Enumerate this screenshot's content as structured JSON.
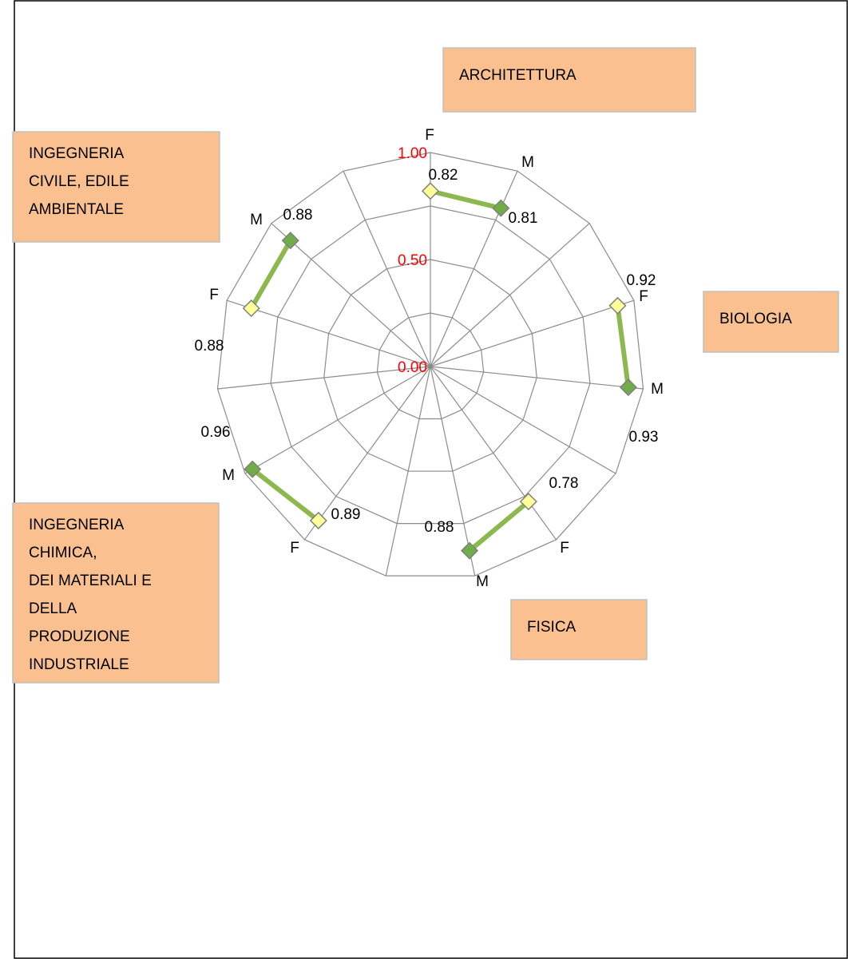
{
  "chart_data": {
    "type": "radar",
    "categories": [
      "F",
      "M",
      null,
      "F",
      "M",
      null,
      "F",
      "M",
      null,
      "F",
      "M",
      null,
      "F",
      "M",
      null
    ],
    "series": [
      {
        "color": "#8db850",
        "values": [
          0.82,
          0.81,
          null,
          0.92,
          0.93,
          null,
          0.78,
          0.88,
          null,
          0.89,
          0.96,
          null,
          0.88,
          0.88,
          null
        ]
      }
    ],
    "marker_colors": {
      "F": "#ffff99",
      "M": "#70ad47"
    },
    "ylim": [
      0,
      1
    ],
    "yticks": [
      {
        "value": 0,
        "label": "0.00"
      },
      {
        "value": 0.25,
        "label": null
      },
      {
        "value": 0.5,
        "label": "0.50"
      },
      {
        "value": 0.75,
        "label": null
      },
      {
        "value": 1,
        "label": "1.00"
      }
    ],
    "tick_color": "#ff0000",
    "grid": true,
    "annotations": [
      {
        "lines": [
          "ARCHITETTURA"
        ]
      },
      {
        "lines": [
          "INGEGNERIA",
          "CIVILE, EDILE",
          "AMBIENTALE"
        ]
      },
      {
        "lines": [
          "BIOLOGIA"
        ]
      },
      {
        "lines": [
          "FISICA"
        ]
      },
      {
        "lines": [
          "INGEGNERIA",
          "CHIMICA,",
          "DEI MATERIALI E",
          "DELLA",
          "PRODUZIONE",
          "INDUSTRIALE"
        ]
      }
    ]
  }
}
